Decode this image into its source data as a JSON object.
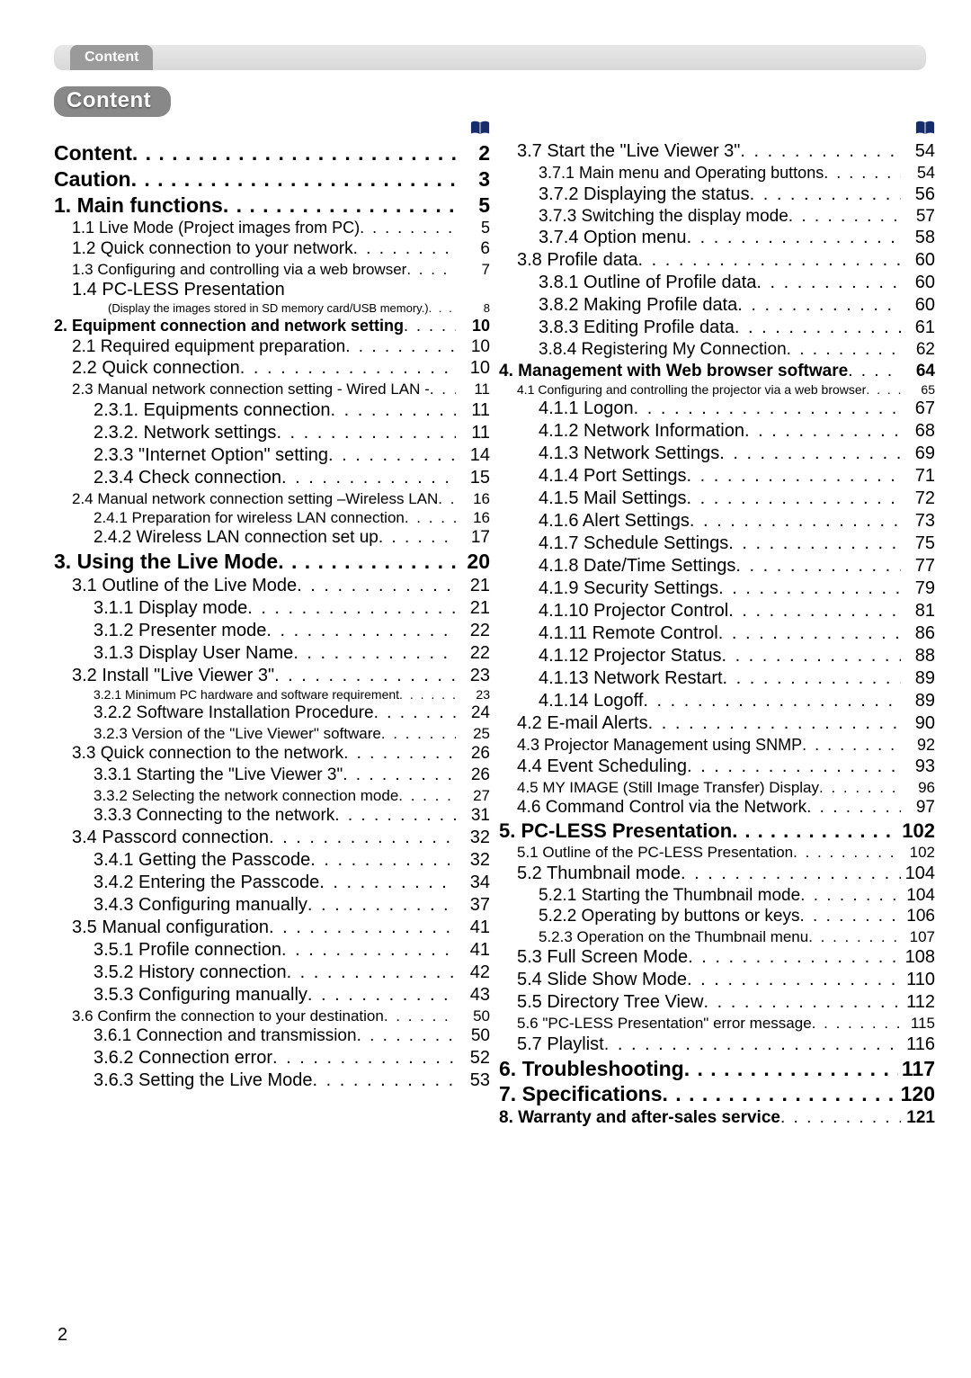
{
  "header": {
    "tab": "Content",
    "badge": "Content"
  },
  "pageNumber": "2",
  "leftColumn": [
    {
      "cls": "lvl-top",
      "label": "Content",
      "pg": "2"
    },
    {
      "cls": "lvl-top",
      "label": "Caution",
      "pg": "3"
    },
    {
      "cls": "lvl-sec",
      "label": "1. Main functions",
      "pg": "5"
    },
    {
      "cls": "lvl-sub1",
      "label": "1.1 Live Mode (Project images from PC)",
      "pg": "5",
      "fs": 18
    },
    {
      "cls": "lvl-sub1",
      "label": "1.2 Quick connection to your network",
      "pg": "6",
      "fs": 19
    },
    {
      "cls": "lvl-sub1-sm",
      "label": "1.3 Configuring and controlling via a web browser",
      "pg": "7"
    },
    {
      "cls": "lvl-sub1",
      "label": "1.4 PC-LESS Presentation",
      "pg": ""
    },
    {
      "cls": "lvl-note",
      "label": "(Display the images stored in SD memory card/USB memory.)",
      "pg": "8"
    },
    {
      "cls": "lvl-sec-sm",
      "label": "2. Equipment connection and network setting",
      "pg": "10",
      "bold": true
    },
    {
      "cls": "lvl-sub1",
      "label": "2.1 Required equipment preparation",
      "pg": "10",
      "fs": 19
    },
    {
      "cls": "lvl-sub1",
      "label": "2.2 Quick connection",
      "pg": "10"
    },
    {
      "cls": "lvl-sub1-sm",
      "label": "2.3 Manual network connection setting - Wired LAN -",
      "pg": "11"
    },
    {
      "cls": "lvl-sub2",
      "label": "2.3.1. Equipments connection",
      "pg": "11"
    },
    {
      "cls": "lvl-sub2",
      "label": "2.3.2. Network settings",
      "pg": "11"
    },
    {
      "cls": "lvl-sub2",
      "label": "2.3.3 \"Internet Option\" setting",
      "pg": "14"
    },
    {
      "cls": "lvl-sub2",
      "label": "2.3.4 Check connection",
      "pg": "15"
    },
    {
      "cls": "lvl-sub1-sm",
      "label": "2.4 Manual network connection setting –Wireless LAN",
      "pg": "16"
    },
    {
      "cls": "lvl-sub2-sm",
      "label": "2.4.1 Preparation for wireless LAN connection",
      "pg": "16"
    },
    {
      "cls": "lvl-sub2",
      "label": "2.4.2 Wireless LAN connection set up",
      "pg": "17",
      "fs": 19
    },
    {
      "cls": "lvl-sec",
      "label": "3. Using the Live Mode",
      "pg": "20"
    },
    {
      "cls": "lvl-sub1",
      "label": "3.1 Outline of the Live Mode",
      "pg": "21"
    },
    {
      "cls": "lvl-sub2",
      "label": "3.1.1 Display mode",
      "pg": "21"
    },
    {
      "cls": "lvl-sub2",
      "label": "3.1.2 Presenter mode",
      "pg": "22"
    },
    {
      "cls": "lvl-sub2",
      "label": "3.1.3 Display User Name",
      "pg": "22"
    },
    {
      "cls": "lvl-sub1",
      "label": "3.2 Install \"Live Viewer 3\"",
      "pg": "23"
    },
    {
      "cls": "lvl-sub2-xs",
      "label": "3.2.1 Minimum PC hardware and software requirement",
      "pg": "23"
    },
    {
      "cls": "lvl-sub2",
      "label": "3.2.2 Software Installation Procedure",
      "pg": "24",
      "fs": 19
    },
    {
      "cls": "lvl-sub2-sm",
      "label": "3.2.3 Version of the \"Live Viewer\" software",
      "pg": "25"
    },
    {
      "cls": "lvl-sub1",
      "label": "3.3 Quick connection to the network",
      "pg": "26",
      "fs": 19
    },
    {
      "cls": "lvl-sub2",
      "label": "3.3.1 Starting the \"Live Viewer 3\"",
      "pg": "26",
      "fs": 19
    },
    {
      "cls": "lvl-sub2-sm",
      "label": "3.3.2 Selecting the network connection mode",
      "pg": "27"
    },
    {
      "cls": "lvl-sub2",
      "label": "3.3.3 Connecting to the network",
      "pg": "31",
      "fs": 19
    },
    {
      "cls": "lvl-sub1",
      "label": "3.4 Passcord connection",
      "pg": "32"
    },
    {
      "cls": "lvl-sub2",
      "label": "3.4.1 Getting the Passcode",
      "pg": "32"
    },
    {
      "cls": "lvl-sub2",
      "label": "3.4.2 Entering the Passcode",
      "pg": "34"
    },
    {
      "cls": "lvl-sub2",
      "label": "3.4.3 Configuring manually",
      "pg": "37"
    },
    {
      "cls": "lvl-sub1",
      "label": "3.5 Manual configuration",
      "pg": "41"
    },
    {
      "cls": "lvl-sub2",
      "label": "3.5.1 Profile connection",
      "pg": "41"
    },
    {
      "cls": "lvl-sub2",
      "label": "3.5.2 History connection",
      "pg": "42"
    },
    {
      "cls": "lvl-sub2",
      "label": "3.5.3 Configuring manually",
      "pg": "43"
    },
    {
      "cls": "lvl-sub1-sm",
      "label": "3.6 Confirm the connection to your destination",
      "pg": "50"
    },
    {
      "cls": "lvl-sub2",
      "label": "3.6.1 Connection and transmission",
      "pg": "50",
      "fs": 19
    },
    {
      "cls": "lvl-sub2",
      "label": "3.6.2 Connection error",
      "pg": "52"
    },
    {
      "cls": "lvl-sub2",
      "label": "3.6.3 Setting the Live Mode",
      "pg": "53"
    }
  ],
  "rightColumn": [
    {
      "cls": "lvl-sub1",
      "label": "3.7 Start the \"Live Viewer 3\"",
      "pg": "54"
    },
    {
      "cls": "lvl-sub2",
      "label": "3.7.1 Main menu and Operating buttons",
      "pg": "54",
      "fs": 18
    },
    {
      "cls": "lvl-sub2",
      "label": "3.7.2 Displaying the status",
      "pg": "56"
    },
    {
      "cls": "lvl-sub2",
      "label": "3.7.3 Switching the display mode",
      "pg": "57",
      "fs": 19
    },
    {
      "cls": "lvl-sub2",
      "label": "3.7.4 Option menu",
      "pg": "58"
    },
    {
      "cls": "lvl-sub1",
      "label": "3.8 Profile data",
      "pg": "60"
    },
    {
      "cls": "lvl-sub2",
      "label": "3.8.1 Outline of Profile data",
      "pg": "60"
    },
    {
      "cls": "lvl-sub2",
      "label": "3.8.2 Making Profile data",
      "pg": "60"
    },
    {
      "cls": "lvl-sub2",
      "label": "3.8.3 Editing Profile data",
      "pg": "61"
    },
    {
      "cls": "lvl-sub2",
      "label": "3.8.4 Registering My Connection",
      "pg": "62",
      "fs": 19
    },
    {
      "cls": "lvl-sec-sm",
      "label": "4. Management with Web browser software",
      "pg": "64",
      "bold": true,
      "fs": 19
    },
    {
      "cls": "lvl-s14",
      "label": "4.1 Configuring and controlling the projector via a web browser",
      "pg": "65"
    },
    {
      "cls": "lvl-sub2",
      "label": "4.1.1 Logon",
      "pg": "67"
    },
    {
      "cls": "lvl-sub2",
      "label": "4.1.2 Network Information",
      "pg": "68"
    },
    {
      "cls": "lvl-sub2",
      "label": "4.1.3 Network Settings",
      "pg": "69"
    },
    {
      "cls": "lvl-sub2",
      "label": "4.1.4 Port Settings",
      "pg": "71"
    },
    {
      "cls": "lvl-sub2",
      "label": "4.1.5 Mail Settings",
      "pg": "72"
    },
    {
      "cls": "lvl-sub2",
      "label": "4.1.6 Alert Settings",
      "pg": "73"
    },
    {
      "cls": "lvl-sub2",
      "label": "4.1.7 Schedule Settings",
      "pg": "75"
    },
    {
      "cls": "lvl-sub2",
      "label": "4.1.8 Date/Time Settings",
      "pg": "77"
    },
    {
      "cls": "lvl-sub2",
      "label": "4.1.9 Security Settings",
      "pg": "79"
    },
    {
      "cls": "lvl-sub2",
      "label": "4.1.10 Projector Control",
      "pg": "81"
    },
    {
      "cls": "lvl-sub2",
      "label": "4.1.11 Remote Control",
      "pg": "86"
    },
    {
      "cls": "lvl-sub2",
      "label": "4.1.12 Projector Status",
      "pg": "88"
    },
    {
      "cls": "lvl-sub2",
      "label": "4.1.13 Network Restart",
      "pg": "89"
    },
    {
      "cls": "lvl-sub2",
      "label": "4.1.14 Logoff",
      "pg": "89"
    },
    {
      "cls": "lvl-sub1",
      "label": "4.2 E-mail Alerts",
      "pg": "90"
    },
    {
      "cls": "lvl-sub1",
      "label": "4.3 Projector Management using SNMP",
      "pg": "92",
      "fs": 18
    },
    {
      "cls": "lvl-sub1",
      "label": "4.4 Event Scheduling",
      "pg": "93"
    },
    {
      "cls": "lvl-sub1-sm",
      "label": "4.5 MY IMAGE (Still Image Transfer) Display",
      "pg": "96"
    },
    {
      "cls": "lvl-sub1",
      "label": "4.6 Command Control via the Network",
      "pg": "97",
      "fs": 19
    },
    {
      "cls": "lvl-sec",
      "label": "5. PC-LESS Presentation",
      "pg": "102",
      "fs": 22
    },
    {
      "cls": "lvl-sub1-sm",
      "label": "5.1 Outline of the PC-LESS Presentation",
      "pg": "102"
    },
    {
      "cls": "lvl-sub1",
      "label": "5.2 Thumbnail mode",
      "pg": "104"
    },
    {
      "cls": "lvl-sub2",
      "label": "5.2.1 Starting the Thumbnail mode",
      "pg": "104",
      "fs": 19
    },
    {
      "cls": "lvl-sub2",
      "label": "5.2.2 Operating by buttons or keys",
      "pg": "106",
      "fs": 19
    },
    {
      "cls": "lvl-sub2-sm",
      "label": "5.2.3 Operation on the Thumbnail menu",
      "pg": "107"
    },
    {
      "cls": "lvl-sub1",
      "label": "5.3 Full Screen Mode",
      "pg": "108"
    },
    {
      "cls": "lvl-sub1",
      "label": "5.4 Slide Show Mode",
      "pg": "110"
    },
    {
      "cls": "lvl-sub1",
      "label": "5.5 Directory Tree View",
      "pg": "112"
    },
    {
      "cls": "lvl-sub1-sm",
      "label": "5.6 \"PC-LESS Presentation\" error message",
      "pg": "115"
    },
    {
      "cls": "lvl-sub1",
      "label": "5.7 Playlist",
      "pg": "116"
    },
    {
      "cls": "lvl-sec",
      "label": "6. Troubleshooting",
      "pg": "117"
    },
    {
      "cls": "lvl-sec",
      "label": "7. Specifications",
      "pg": "120"
    },
    {
      "cls": "lvl-sec-sm",
      "label": "8. Warranty and after-sales service",
      "pg": "121",
      "bold": true,
      "fs": 19
    }
  ]
}
